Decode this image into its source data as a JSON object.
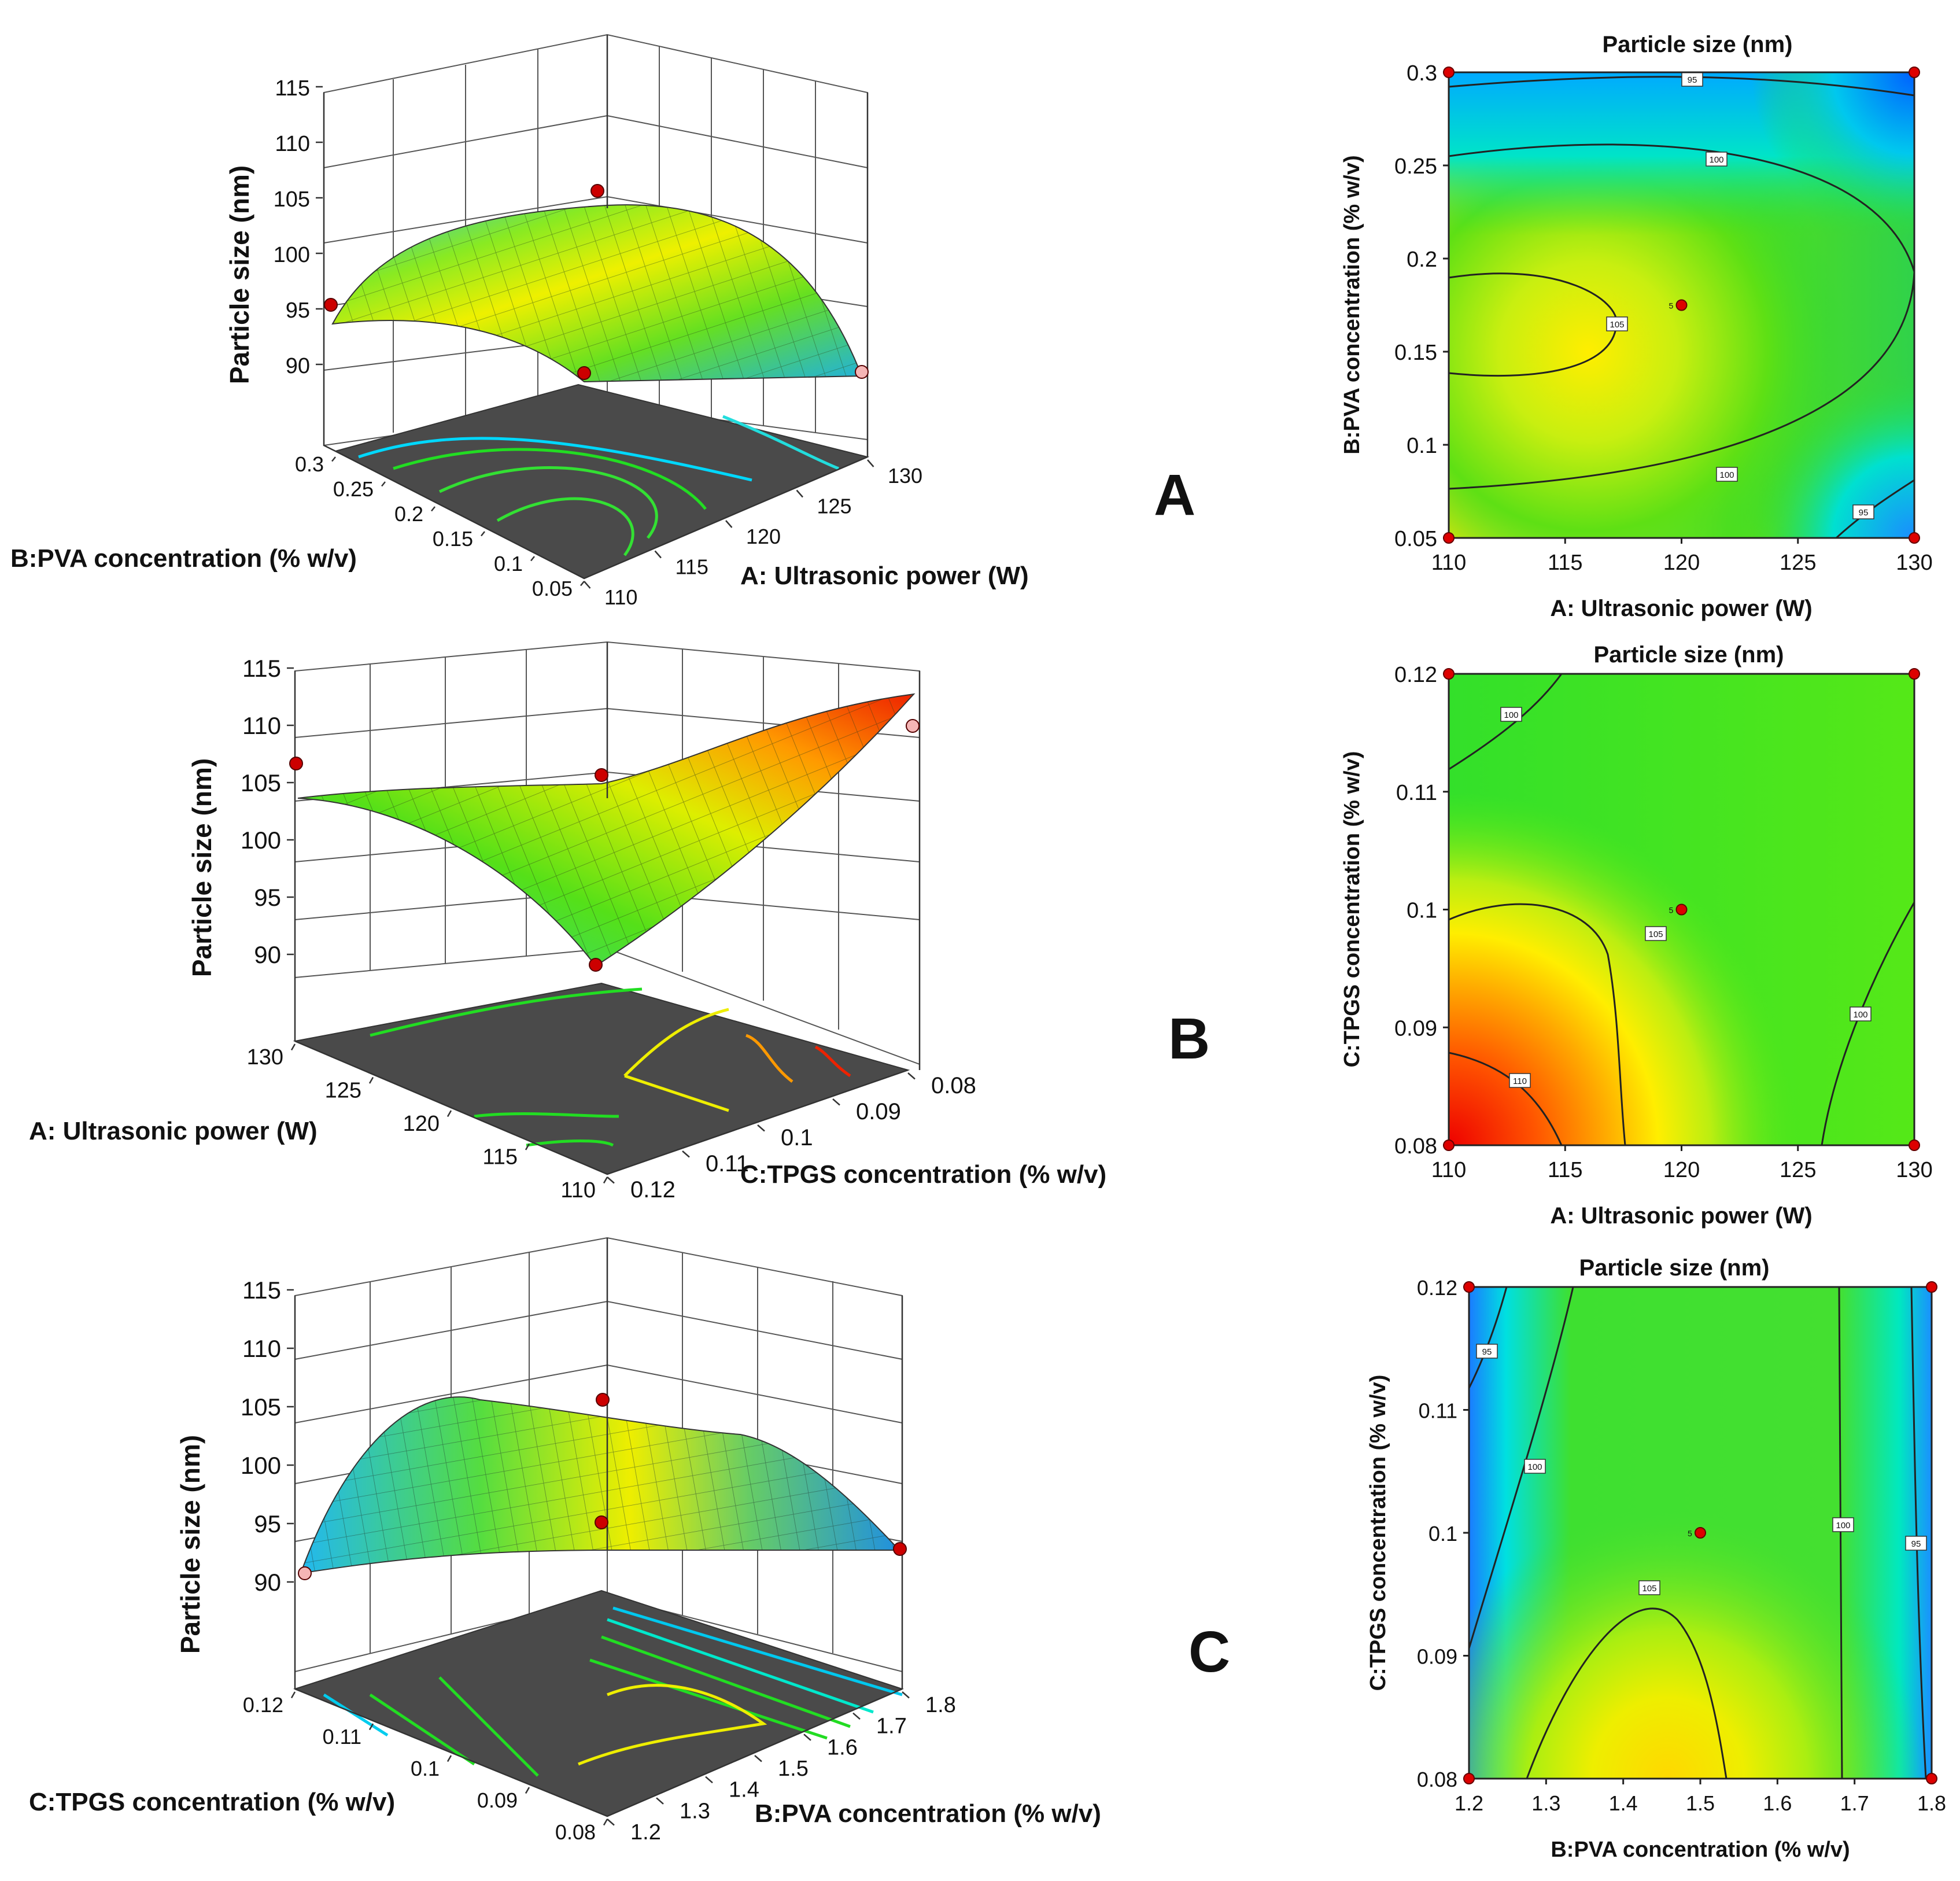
{
  "panel_letters": [
    "A",
    "B",
    "C"
  ],
  "chart_data": [
    {
      "type": "surface3d",
      "panel": "A",
      "zlabel": "Particle size (nm)",
      "z_ticks": [
        "90",
        "95",
        "100",
        "105",
        "110",
        "115"
      ],
      "x_axis": {
        "label": "A:  Ultrasonic power (W)",
        "ticks": [
          "110",
          "115",
          "120",
          "125",
          "130"
        ],
        "range": [
          110,
          130
        ]
      },
      "y_axis": {
        "label": "B:PVA concentration   (% w/v)",
        "ticks": [
          "0.05",
          "0.1",
          "0.15",
          "0.2",
          "0.25",
          "0.3"
        ],
        "range": [
          0.05,
          0.3
        ]
      },
      "zlim": [
        90,
        115
      ],
      "colormap": [
        "#1e90ff",
        "#00e5ee",
        "#22dd22",
        "#ffee00",
        "#ff2200"
      ],
      "design_points": [
        {
          "x": 120,
          "y": 0.175,
          "z": 104,
          "color": "#cc0000"
        },
        {
          "x": 110,
          "y": 0.3,
          "z": 95,
          "color": "#cc0000"
        },
        {
          "x": 110,
          "y": 0.05,
          "z": 91,
          "color": "#cc0000"
        },
        {
          "x": 130,
          "y": 0.05,
          "z": 90,
          "color": "#f5b5b5"
        }
      ]
    },
    {
      "type": "contour",
      "panel": "A",
      "title": "Particle size (nm)",
      "xlabel": "A:  Ultrasonic power (W)",
      "ylabel": "B:PVA concentration   (% w/v)",
      "x_ticks": [
        "110",
        "115",
        "120",
        "125",
        "130"
      ],
      "y_ticks": [
        "0.05",
        "0.1",
        "0.15",
        "0.2",
        "0.25",
        "0.3"
      ],
      "xlim": [
        110,
        130
      ],
      "ylim": [
        0.05,
        0.3
      ],
      "contour_levels": [
        "95",
        "100",
        "105"
      ],
      "center_label": "5"
    },
    {
      "type": "surface3d",
      "panel": "B",
      "zlabel": "Particle size (nm)",
      "z_ticks": [
        "90",
        "95",
        "100",
        "105",
        "110",
        "115"
      ],
      "x_axis": {
        "label": "A:  Ultrasonic power (W)",
        "ticks": [
          "110",
          "115",
          "120",
          "125",
          "130"
        ],
        "range": [
          110,
          130
        ]
      },
      "y_axis": {
        "label": "C:TPGS concentration   (% w/v)",
        "ticks": [
          "0.08",
          "0.09",
          "0.1",
          "0.11",
          "0.12"
        ],
        "range": [
          0.08,
          0.12
        ]
      },
      "zlim": [
        90,
        115
      ],
      "design_points": [
        {
          "x": 120,
          "y": 0.1,
          "z": 104,
          "color": "#cc0000"
        },
        {
          "x": 130,
          "y": 0.08,
          "z": 106,
          "color": "#cc0000"
        },
        {
          "x": 130,
          "y": 0.12,
          "z": 91,
          "color": "#cc0000"
        },
        {
          "x": 110,
          "y": 0.08,
          "z": 111,
          "color": "#f5b5b5"
        }
      ]
    },
    {
      "type": "contour",
      "panel": "B",
      "title": "Particle size (nm)",
      "xlabel": "A:  Ultrasonic power (W)",
      "ylabel": "C:TPGS concentration   (% w/v)",
      "x_ticks": [
        "110",
        "115",
        "120",
        "125",
        "130"
      ],
      "y_ticks": [
        "0.08",
        "0.09",
        "0.1",
        "0.11",
        "0.12"
      ],
      "xlim": [
        110,
        130
      ],
      "ylim": [
        0.08,
        0.12
      ],
      "contour_levels": [
        "100",
        "105",
        "110",
        "100"
      ],
      "center_label": "5"
    },
    {
      "type": "surface3d",
      "panel": "C",
      "zlabel": "Particle size (nm)",
      "z_ticks": [
        "90",
        "95",
        "100",
        "105",
        "110",
        "115"
      ],
      "x_axis": {
        "label": "B:PVA concentration   (% w/v)",
        "ticks": [
          "1.2",
          "1.3",
          "1.4",
          "1.5",
          "1.6",
          "1.7",
          "1.8"
        ],
        "range": [
          1.2,
          1.8
        ]
      },
      "y_axis": {
        "label": "C:TPGS concentration   (% w/v)",
        "ticks": [
          "0.08",
          "0.09",
          "0.1",
          "0.11",
          "0.12"
        ],
        "range": [
          0.08,
          0.12
        ]
      },
      "zlim": [
        90,
        115
      ],
      "design_points": [
        {
          "x": 1.5,
          "y": 0.1,
          "z": 104,
          "color": "#cc0000"
        },
        {
          "x": 1.2,
          "y": 0.08,
          "z": 95,
          "color": "#cc0000"
        },
        {
          "x": 1.8,
          "y": 0.08,
          "z": 92,
          "color": "#cc0000"
        },
        {
          "x": 1.2,
          "y": 0.12,
          "z": 90,
          "color": "#f5b5b5"
        }
      ]
    },
    {
      "type": "contour",
      "panel": "C",
      "title": "Particle size (nm)",
      "xlabel": "B:PVA concentration   (% w/v)",
      "ylabel": "C:TPGS concentration   (% w/v)",
      "x_ticks": [
        "1.2",
        "1.3",
        "1.4",
        "1.5",
        "1.6",
        "1.7",
        "1.8"
      ],
      "y_ticks": [
        "0.08",
        "0.09",
        "0.1",
        "0.11",
        "0.12"
      ],
      "xlim": [
        1.2,
        1.8
      ],
      "ylim": [
        0.08,
        0.12
      ],
      "contour_levels": [
        "95",
        "100",
        "105",
        "100",
        "95"
      ],
      "center_label": "5"
    }
  ]
}
